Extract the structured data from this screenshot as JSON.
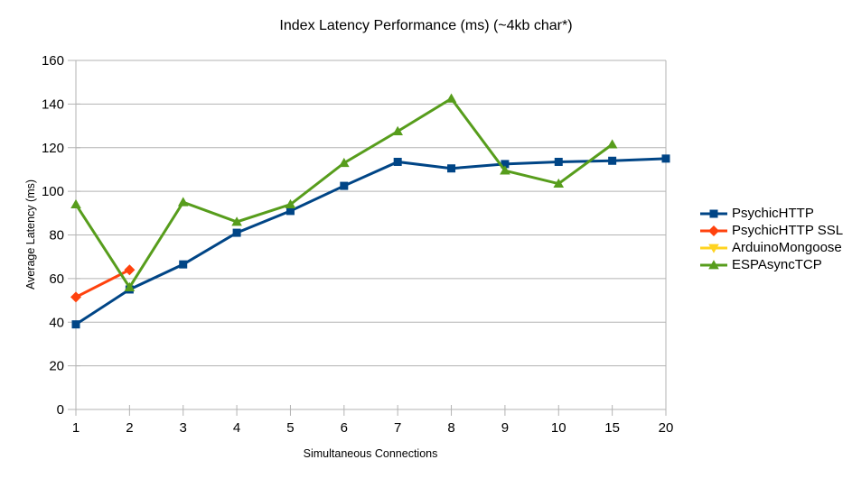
{
  "chart_data": {
    "type": "line",
    "title": "Index Latency Performance (ms) (~4kb char*)",
    "xlabel": "Simultaneous Connections",
    "ylabel": "Average Latency (ms)",
    "categories": [
      "1",
      "2",
      "3",
      "4",
      "5",
      "6",
      "7",
      "8",
      "9",
      "10",
      "15",
      "20"
    ],
    "ylim": [
      0,
      160
    ],
    "ytick_step": 20,
    "ytick_labels": [
      "0",
      "20",
      "40",
      "60",
      "80",
      "100",
      "120",
      "140",
      "160"
    ],
    "grid": true,
    "grid_axis": "horizontal",
    "legend_position": "right",
    "series": [
      {
        "name": "PsychicHTTP",
        "color": "#004586",
        "marker": "square",
        "values": [
          39,
          55,
          66.5,
          81,
          91,
          102.5,
          113.5,
          110.5,
          112.5,
          113.5,
          114,
          115
        ]
      },
      {
        "name": "PsychicHTTP SSL",
        "color": "#ff420e",
        "marker": "diamond",
        "values": [
          51.5,
          64,
          null,
          null,
          null,
          null,
          null,
          null,
          null,
          null,
          null,
          null
        ]
      },
      {
        "name": "ArduinoMongoose",
        "color": "#ffd320",
        "marker": "triangle-down",
        "values": [
          null,
          null,
          null,
          null,
          null,
          null,
          null,
          null,
          null,
          null,
          null,
          null
        ]
      },
      {
        "name": "ESPAsyncTCP",
        "color": "#579d1c",
        "marker": "triangle-up",
        "values": [
          94,
          56,
          95,
          86,
          94,
          113,
          127.5,
          142.5,
          109.5,
          103.5,
          121.5,
          null
        ]
      }
    ],
    "axis_color": "#b3b3b3",
    "grid_color": "#b3b3b3",
    "text_color": "#000000"
  }
}
